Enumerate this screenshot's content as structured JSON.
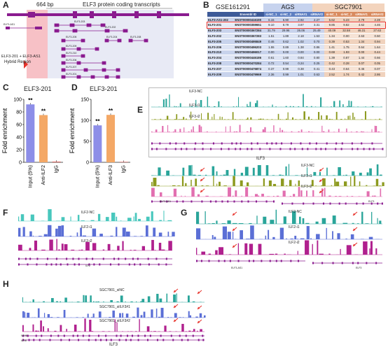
{
  "panels": {
    "A": "A",
    "B": "B",
    "C": "C",
    "D": "D",
    "E": "E",
    "F": "F",
    "G": "G",
    "H": "H"
  },
  "panel_a": {
    "bp_label": "664 bp",
    "title": "ELF3 protein coding transcripts",
    "hybrid_label_1": "ELF3-201 + ELF3-AS1",
    "hybrid_label_2": "Hybrid Region",
    "transcripts": [
      "ELF3-AS1",
      "ELF3-203",
      "ELF3-202",
      "ELF3-205",
      "ELF3-204",
      "ELF3-208",
      "ELF3-209",
      "ELF3-210",
      "ELF3-206",
      "ELF3-207",
      "ELF3-201"
    ]
  },
  "panel_b": {
    "dataset": "GSE161291",
    "group_ags": "AGS",
    "group_sgc": "SGC7901",
    "headers": [
      "",
      "Ensembl ID",
      "si-NC_1",
      "si-NC_2",
      "siRNA#1",
      "siRNA#2",
      "si-NC_1",
      "si-NC_2",
      "siRNA#1",
      "siRNA#2"
    ],
    "rows": [
      [
        "ELF3-AS1-202",
        "ENST00000416190",
        "6.15",
        "6.90",
        "2.92",
        "2.27",
        "5.62",
        "5.23",
        "2.79",
        "2.28"
      ],
      [
        "ELF3-201",
        "ENST00000359651",
        "9.10",
        "8.79",
        "3.87",
        "3.31",
        "9.85",
        "9.82",
        "4.62",
        "4.46"
      ],
      [
        "ELF3-203",
        "ENST00000367284",
        "31.79",
        "29.96",
        "26.06",
        "25.49",
        "40.09",
        "32.58",
        "46.31",
        "27.63"
      ],
      [
        "ELF3-202",
        "ENST00000367283",
        "1.51",
        "1.89",
        "2.18",
        "1.53",
        "1.34",
        "0.00",
        "2.63",
        "0.50"
      ],
      [
        "ELF3-205",
        "ENST00000495849",
        "0.46",
        "0.62",
        "1.02",
        "0.70",
        "0.39",
        "0.53",
        "1.34",
        "0.94"
      ],
      [
        "ELF3-206",
        "ENST00000496203",
        "1.55",
        "0.89",
        "1.38",
        "0.86",
        "1.41",
        "1.75",
        "0.64",
        "1.64"
      ],
      [
        "ELF3-210",
        "ENST00000496017",
        "0.00",
        "0.00",
        "0.00",
        "0.00",
        "0.69",
        "1.93",
        "0.00",
        "0.44"
      ],
      [
        "ELF3-204",
        "ENST00000446186",
        "0.61",
        "1.60",
        "0.84",
        "0.80",
        "1.39",
        "0.87",
        "1.44",
        "0.66"
      ],
      [
        "ELF3-208",
        "ENST00000470284",
        "0.72",
        "0.54",
        "0.24",
        "0.25",
        "0.42",
        "0.28",
        "0.07",
        "0.05"
      ],
      [
        "ELF3-207",
        "ENST00000476874",
        "0.37",
        "0.99",
        "0.38",
        "0.41",
        "0.43",
        "0.64",
        "0.46",
        "0.07"
      ],
      [
        "ELF3-209",
        "ENST00000479969",
        "2.36",
        "0.99",
        "1.01",
        "0.63",
        "2.52",
        "1.74",
        "0.42",
        "2.86"
      ]
    ]
  },
  "panel_c": {
    "title": "ELF3-201",
    "ylabel": "Fold enrichment"
  },
  "panel_d": {
    "title": "ELF3-201",
    "ylabel": "Fold enrichment"
  },
  "panel_e": {
    "tracks_top": [
      "ILF3-NC",
      "ILF3-i1",
      "ILF3-i2"
    ],
    "gene_label": "ILF3",
    "tracks_bottom": [
      "ILF3-NC",
      "ILF3-i1",
      "ILF3-i2"
    ],
    "bottom_genes": [
      "ELF3-AS1",
      "ELF3"
    ]
  },
  "panel_f": {
    "tracks": [
      "ILF2-NC",
      "ILF2-i1",
      "ILF2-i2"
    ],
    "gene_label": "ILF2"
  },
  "panel_g": {
    "tracks": [
      "ILF2-NC",
      "ILF2-i1",
      "ILF2-i2"
    ],
    "genes": [
      "ELF3-AS1",
      "ELF3"
    ]
  },
  "panel_h": {
    "tracks": [
      "SGC7901_siNC",
      "SGC7901_siILF3#1",
      "SGC7901_siILF3#2"
    ],
    "side_labels": [
      "NFYB",
      "NFBI"
    ],
    "gene_label": "ILF3"
  },
  "colors": {
    "teal": "#2aa59a",
    "olive": "#8d9a1f",
    "pink": "#e26fb0",
    "magenta": "#b0208e",
    "blue": "#5b6fd6",
    "purple": "#8a1b8f",
    "red": "#e8322b"
  },
  "chart_data": [
    {
      "type": "bar",
      "title": "ELF3-201",
      "ylabel": "Fold enrichment",
      "categories": [
        "Input (5%)",
        "Anti-ILF2",
        "IgG"
      ],
      "values": [
        92,
        75,
        1
      ],
      "ylim": [
        0,
        100
      ],
      "yticks": [
        "0",
        "20",
        "40",
        "60",
        "80",
        "100"
      ],
      "annotations": [
        "**",
        "**",
        ""
      ]
    },
    {
      "type": "bar",
      "title": "ELF3-201",
      "ylabel": "Fold enrichment",
      "categories": [
        "Input (5%)",
        "Anti-ILF3",
        "IgG"
      ],
      "values": [
        88,
        113,
        1
      ],
      "ylim": [
        0,
        150
      ],
      "yticks": [
        "0",
        "50",
        "100",
        "150"
      ],
      "annotations": [
        "**",
        "**",
        ""
      ]
    }
  ]
}
